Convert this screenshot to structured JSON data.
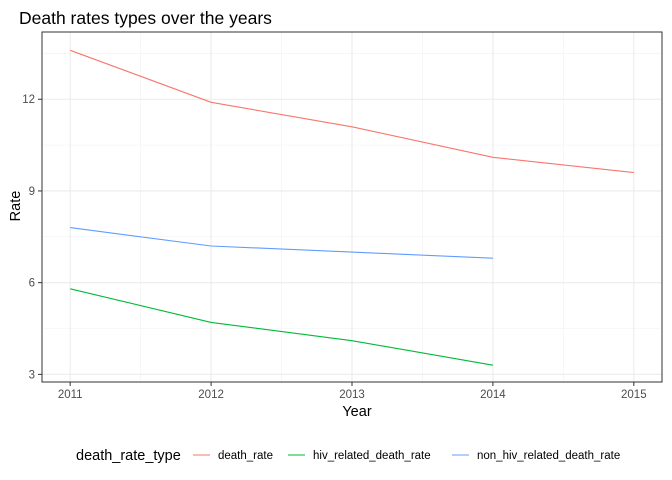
{
  "chart_data": {
    "type": "line",
    "title": "Death rates types over the years",
    "xlabel": "Year",
    "ylabel": "Rate",
    "x_ticks": [
      2011,
      2012,
      2013,
      2014,
      2015
    ],
    "y_ticks": [
      3,
      6,
      9,
      12
    ],
    "xlim": [
      2010.8,
      2015.2
    ],
    "ylim": [
      2.75,
      14.2
    ],
    "grid": true,
    "legend": {
      "title": "death_rate_type",
      "position": "bottom"
    },
    "series": [
      {
        "name": "death_rate",
        "color": "#F8766D",
        "x": [
          2011,
          2012,
          2013,
          2014,
          2015
        ],
        "values": [
          13.6,
          11.9,
          11.1,
          10.1,
          9.6
        ]
      },
      {
        "name": "hiv_related_death_rate",
        "color": "#00BA38",
        "x": [
          2011,
          2012,
          2013,
          2014
        ],
        "values": [
          5.8,
          4.7,
          4.1,
          3.3
        ]
      },
      {
        "name": "non_hiv_related_death_rate",
        "color": "#619CFF",
        "x": [
          2011,
          2012,
          2013,
          2014
        ],
        "values": [
          7.8,
          7.2,
          7.0,
          6.8
        ]
      }
    ]
  }
}
